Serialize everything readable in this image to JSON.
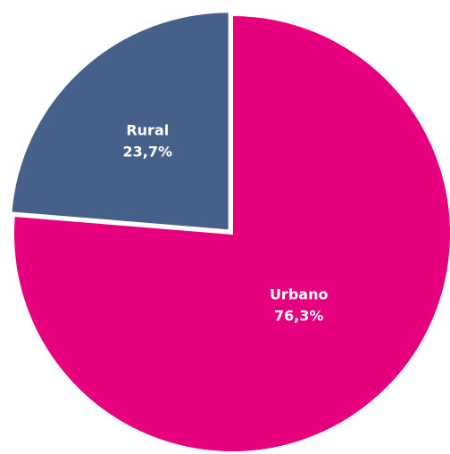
{
  "chart_data": {
    "type": "pie",
    "categories": [
      "Urbano",
      "Rural"
    ],
    "values": [
      76.3,
      23.7
    ],
    "value_labels": [
      "76,3%",
      "23,7%"
    ],
    "colors": [
      "#e6007e",
      "#456189"
    ]
  }
}
